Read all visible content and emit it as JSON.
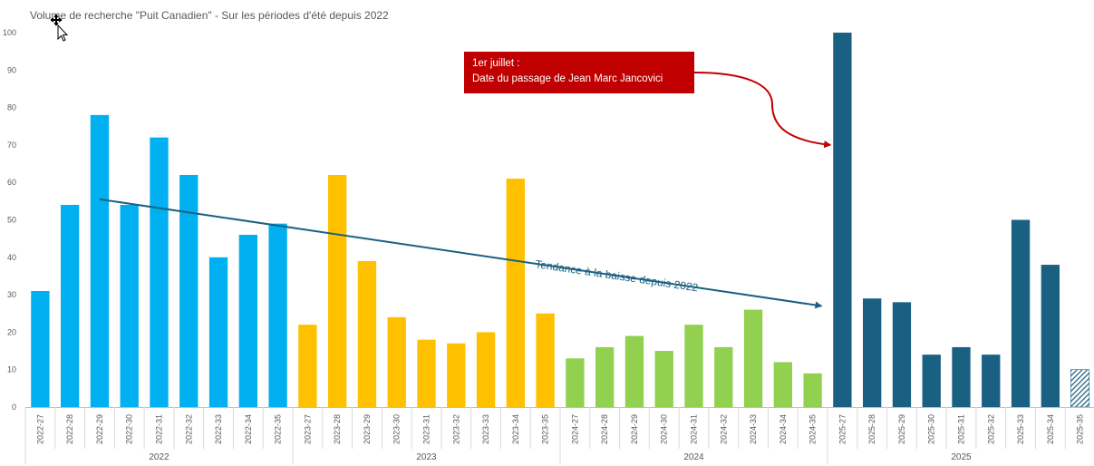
{
  "chart_data": {
    "type": "bar",
    "title": "Volume de recherche \"Puit Canadien\" - Sur les périodes d'été depuis 2022",
    "ylim": [
      0,
      100
    ],
    "yticks": [
      0,
      10,
      20,
      30,
      40,
      50,
      60,
      70,
      80,
      90,
      100
    ],
    "grid": false,
    "groups": [
      {
        "name": "2022",
        "color": "#00b0f0",
        "categories": [
          "2022-27",
          "2022-28",
          "2022-29",
          "2022-30",
          "2022-31",
          "2022-32",
          "2022-33",
          "2022-34",
          "2022-35"
        ],
        "values": [
          31,
          54,
          78,
          54,
          72,
          62,
          40,
          46,
          49
        ]
      },
      {
        "name": "2023",
        "color": "#ffc000",
        "categories": [
          "2023-27",
          "2023-28",
          "2023-29",
          "2023-30",
          "2023-31",
          "2023-32",
          "2023-33",
          "2023-34",
          "2023-35"
        ],
        "values": [
          22,
          62,
          39,
          24,
          18,
          17,
          20,
          61,
          25
        ]
      },
      {
        "name": "2024",
        "color": "#92d050",
        "categories": [
          "2024-27",
          "2024-28",
          "2024-29",
          "2024-30",
          "2024-31",
          "2024-32",
          "2024-33",
          "2024-34",
          "2024-35"
        ],
        "values": [
          13,
          16,
          19,
          15,
          22,
          16,
          26,
          12,
          9
        ]
      },
      {
        "name": "2025",
        "color": "#1a6082",
        "categories": [
          "2025-27",
          "2025-28",
          "2025-29",
          "2025-30",
          "2025-31",
          "2025-32",
          "2025-33",
          "2025-34",
          "2025-35"
        ],
        "values": [
          100,
          29,
          28,
          14,
          16,
          14,
          50,
          38,
          10
        ],
        "hatched_last": true
      }
    ],
    "annotations": {
      "callout_line1": "1er juillet :",
      "callout_line2": "Date du passage de Jean Marc Jancovici",
      "callout_color": "#c00000",
      "trend_label": "Tendance à la baisse depuis 2022",
      "trend_color": "#1a6082",
      "trend_from": {
        "category": "2022-29",
        "value": 55.5
      },
      "trend_to": {
        "category": "2024-35",
        "value": 27
      },
      "callout_target": {
        "category": "2025-27",
        "value": 70
      }
    }
  }
}
